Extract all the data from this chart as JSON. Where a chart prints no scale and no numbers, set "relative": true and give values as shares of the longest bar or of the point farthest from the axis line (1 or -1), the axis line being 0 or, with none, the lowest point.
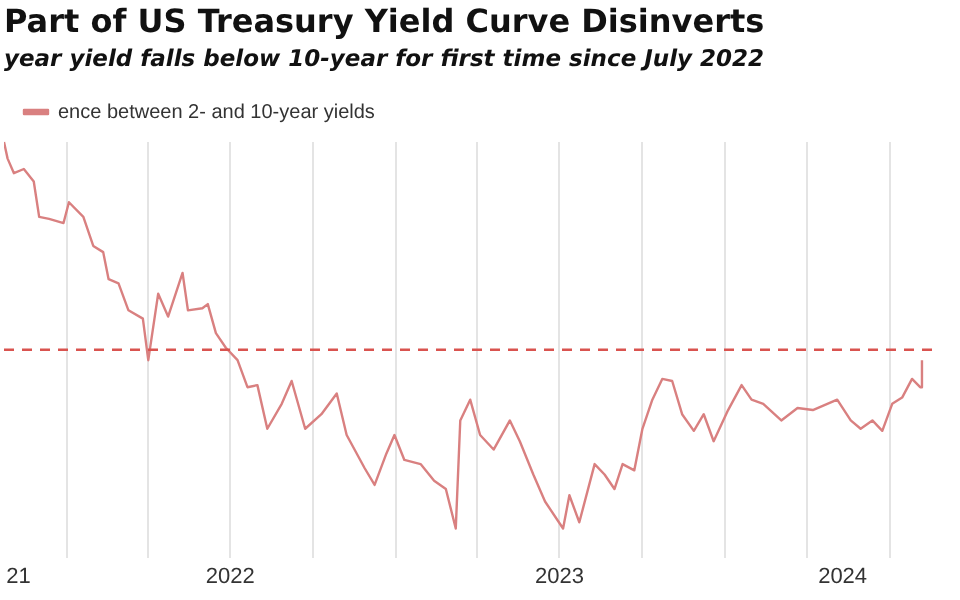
{
  "chart_data": {
    "type": "line",
    "title": "Part of US Treasury Yield Curve Disinverts",
    "subtitle": "year yield falls below 10-year for first time since July 2022",
    "relative": true,
    "legend": "top left",
    "grid": "x",
    "marker": "none",
    "line_style": "solid",
    "x": [
      "2021-10-23",
      "2021-10-27",
      "2021-11-03",
      "2021-11-14",
      "2021-11-25",
      "2021-12-01",
      "2021-12-12",
      "2021-12-28",
      "2022-01-03",
      "2022-01-19",
      "2022-01-30",
      "2022-02-10",
      "2022-02-16",
      "2022-02-27",
      "2022-03-10",
      "2022-03-26",
      "2022-04-01",
      "2022-04-12",
      "2022-04-23",
      "2022-05-09",
      "2022-05-15",
      "2022-05-31",
      "2022-06-06",
      "2022-06-15",
      "2022-06-26",
      "2022-07-09",
      "2022-07-20",
      "2022-07-31",
      "2022-08-11",
      "2022-08-27",
      "2022-09-07",
      "2022-09-22",
      "2022-10-10",
      "2022-10-27",
      "2022-11-07",
      "2022-11-27",
      "2022-12-08",
      "2022-12-21",
      "2022-12-30",
      "2023-01-10",
      "2023-01-28",
      "2023-02-12",
      "2023-02-25",
      "2023-03-08",
      "2023-03-13",
      "2023-03-24",
      "2023-04-04",
      "2023-04-19",
      "2023-05-07",
      "2023-05-18",
      "2023-06-02",
      "2023-06-15",
      "2023-07-05",
      "2023-07-12",
      "2023-07-23",
      "2023-08-09",
      "2023-08-20",
      "2023-08-31",
      "2023-09-09",
      "2023-09-22",
      "2023-10-01",
      "2023-10-12",
      "2023-10-23",
      "2023-11-03",
      "2023-11-14",
      "2023-11-27",
      "2023-12-08",
      "2023-12-19",
      "2024-01-04",
      "2024-01-19",
      "2024-01-30",
      "2024-02-12",
      "2024-03-03",
      "2024-03-21",
      "2024-04-07",
      "2024-05-04",
      "2024-05-19",
      "2024-05-30",
      "2024-06-12",
      "2024-06-23",
      "2024-07-04",
      "2024-07-15",
      "2024-07-26",
      "2024-08-04",
      "2024-08-06"
    ],
    "xlim": [
      "2021-10-23",
      "2024-08-26"
    ],
    "xticks": [
      {
        "value": "2021-11-08",
        "label": "21"
      },
      {
        "value": "2022-01-01",
        "label": null
      },
      {
        "value": "2022-04-01",
        "label": null
      },
      {
        "value": "2022-07-01",
        "label": "2022"
      },
      {
        "value": "2022-07-01",
        "label": null
      },
      {
        "value": "2022-10-01",
        "label": null
      },
      {
        "value": "2023-01-01",
        "label": null
      },
      {
        "value": "2023-04-01",
        "label": null
      },
      {
        "value": "2023-07-01",
        "label": "2023"
      },
      {
        "value": "2023-07-01",
        "label": null
      },
      {
        "value": "2023-10-01",
        "label": null
      },
      {
        "value": "2024-01-01",
        "label": null
      },
      {
        "value": "2024-04-01",
        "label": null
      },
      {
        "value": "2024-05-10",
        "label": "2024"
      },
      {
        "value": "2024-07-01",
        "label": null
      }
    ],
    "series": [
      {
        "name": "ence between 2- and 10-year yields",
        "color": "#d98080",
        "values": [
          1.0,
          0.92,
          0.85,
          0.87,
          0.81,
          0.64,
          0.63,
          0.61,
          0.71,
          0.64,
          0.5,
          0.47,
          0.34,
          0.32,
          0.19,
          0.15,
          -0.05,
          0.27,
          0.16,
          0.37,
          0.19,
          0.2,
          0.22,
          0.08,
          0.01,
          -0.05,
          -0.18,
          -0.17,
          -0.38,
          -0.26,
          -0.15,
          -0.38,
          -0.31,
          -0.21,
          -0.41,
          -0.57,
          -0.65,
          -0.5,
          -0.41,
          -0.53,
          -0.55,
          -0.63,
          -0.67,
          -0.86,
          -0.34,
          -0.24,
          -0.41,
          -0.48,
          -0.34,
          -0.44,
          -0.6,
          -0.73,
          -0.86,
          -0.7,
          -0.83,
          -0.55,
          -0.6,
          -0.67,
          -0.55,
          -0.58,
          -0.38,
          -0.24,
          -0.14,
          -0.15,
          -0.31,
          -0.39,
          -0.31,
          -0.44,
          -0.29,
          -0.17,
          -0.24,
          -0.26,
          -0.34,
          -0.28,
          -0.29,
          -0.24,
          -0.34,
          -0.38,
          -0.34,
          -0.39,
          -0.26,
          -0.23,
          -0.14,
          -0.18,
          -0.05
        ]
      }
    ],
    "ref_lines": [
      {
        "axis": "y",
        "value": 0,
        "color": "#d9534f",
        "line_style": "dashed"
      }
    ]
  }
}
